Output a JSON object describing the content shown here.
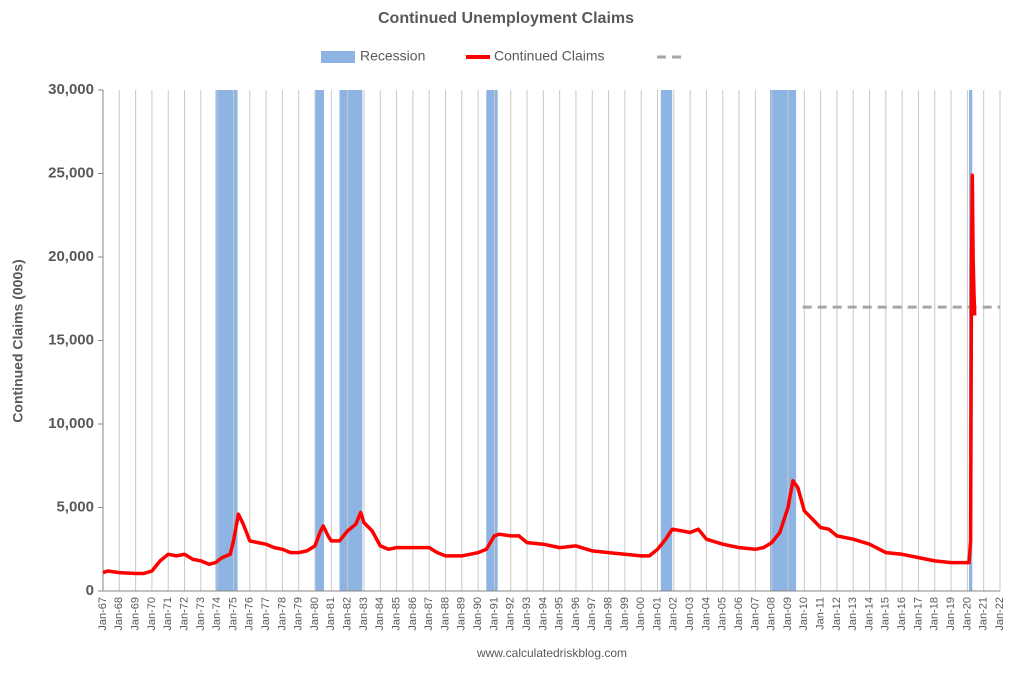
{
  "chart_data": {
    "type": "line",
    "title": "Continued Unemployment Claims",
    "y_label": "Continued Claims (000s)",
    "source": "www.calculatedriskblog.com",
    "xlim": [
      1967,
      2022
    ],
    "xticks": [
      {
        "value": 1967,
        "label": "Jan-67"
      },
      {
        "value": 1968,
        "label": "Jan-68"
      },
      {
        "value": 1969,
        "label": "Jan-69"
      },
      {
        "value": 1970,
        "label": "Jan-70"
      },
      {
        "value": 1971,
        "label": "Jan-71"
      },
      {
        "value": 1972,
        "label": "Jan-72"
      },
      {
        "value": 1973,
        "label": "Jan-73"
      },
      {
        "value": 1974,
        "label": "Jan-74"
      },
      {
        "value": 1975,
        "label": "Jan-75"
      },
      {
        "value": 1976,
        "label": "Jan-76"
      },
      {
        "value": 1977,
        "label": "Jan-77"
      },
      {
        "value": 1978,
        "label": "Jan-78"
      },
      {
        "value": 1979,
        "label": "Jan-79"
      },
      {
        "value": 1980,
        "label": "Jan-80"
      },
      {
        "value": 1981,
        "label": "Jan-81"
      },
      {
        "value": 1982,
        "label": "Jan-82"
      },
      {
        "value": 1983,
        "label": "Jan-83"
      },
      {
        "value": 1984,
        "label": "Jan-84"
      },
      {
        "value": 1985,
        "label": "Jan-85"
      },
      {
        "value": 1986,
        "label": "Jan-86"
      },
      {
        "value": 1987,
        "label": "Jan-87"
      },
      {
        "value": 1988,
        "label": "Jan-88"
      },
      {
        "value": 1989,
        "label": "Jan-89"
      },
      {
        "value": 1990,
        "label": "Jan-90"
      },
      {
        "value": 1991,
        "label": "Jan-91"
      },
      {
        "value": 1992,
        "label": "Jan-92"
      },
      {
        "value": 1993,
        "label": "Jan-93"
      },
      {
        "value": 1994,
        "label": "Jan-94"
      },
      {
        "value": 1995,
        "label": "Jan-95"
      },
      {
        "value": 1996,
        "label": "Jan-96"
      },
      {
        "value": 1997,
        "label": "Jan-97"
      },
      {
        "value": 1998,
        "label": "Jan-98"
      },
      {
        "value": 1999,
        "label": "Jan-99"
      },
      {
        "value": 2000,
        "label": "Jan-00"
      },
      {
        "value": 2001,
        "label": "Jan-01"
      },
      {
        "value": 2002,
        "label": "Jan-02"
      },
      {
        "value": 2003,
        "label": "Jan-03"
      },
      {
        "value": 2004,
        "label": "Jan-04"
      },
      {
        "value": 2005,
        "label": "Jan-05"
      },
      {
        "value": 2006,
        "label": "Jan-06"
      },
      {
        "value": 2007,
        "label": "Jan-07"
      },
      {
        "value": 2008,
        "label": "Jan-08"
      },
      {
        "value": 2009,
        "label": "Jan-09"
      },
      {
        "value": 2010,
        "label": "Jan-10"
      },
      {
        "value": 2011,
        "label": "Jan-11"
      },
      {
        "value": 2012,
        "label": "Jan-12"
      },
      {
        "value": 2013,
        "label": "Jan-13"
      },
      {
        "value": 2014,
        "label": "Jan-14"
      },
      {
        "value": 2015,
        "label": "Jan-15"
      },
      {
        "value": 2016,
        "label": "Jan-16"
      },
      {
        "value": 2017,
        "label": "Jan-17"
      },
      {
        "value": 2018,
        "label": "Jan-18"
      },
      {
        "value": 2019,
        "label": "Jan-19"
      },
      {
        "value": 2020,
        "label": "Jan-20"
      },
      {
        "value": 2021,
        "label": "Jan-21"
      },
      {
        "value": 2022,
        "label": "Jan-22"
      }
    ],
    "ylim": [
      0,
      30000
    ],
    "yticks": [
      0,
      {
        "value": 5000,
        "label": "5,000"
      },
      {
        "value": 10000,
        "label": "10,000"
      },
      {
        "value": 15000,
        "label": "15,000"
      },
      {
        "value": 20000,
        "label": "20,000"
      },
      {
        "value": 25000,
        "label": "25,000"
      },
      {
        "value": 30000,
        "label": "30,000"
      }
    ],
    "grid": true,
    "recession": {
      "name": "Recession",
      "color": "#8eb4e3",
      "periods": [
        [
          1973.9,
          1975.25
        ],
        [
          1980.0,
          1980.55
        ],
        [
          1981.5,
          1982.9
        ],
        [
          1990.5,
          1991.2
        ],
        [
          2001.2,
          2001.9
        ],
        [
          2007.9,
          2009.5
        ],
        [
          2020.1,
          2020.3
        ]
      ]
    },
    "series": [
      {
        "name": "Continued Claims",
        "color": "#ff0000",
        "x": [
          1967.0,
          1967.3,
          1968.0,
          1969.0,
          1969.5,
          1970.0,
          1970.5,
          1971.0,
          1971.5,
          1972.0,
          1972.5,
          1973.0,
          1973.5,
          1973.9,
          1974.3,
          1974.8,
          1975.0,
          1975.3,
          1975.6,
          1976.0,
          1976.5,
          1977.0,
          1977.5,
          1978.0,
          1978.5,
          1979.0,
          1979.5,
          1980.0,
          1980.3,
          1980.5,
          1980.8,
          1981.0,
          1981.5,
          1982.0,
          1982.5,
          1982.8,
          1983.0,
          1983.5,
          1984.0,
          1984.5,
          1985.0,
          1986.0,
          1987.0,
          1987.5,
          1988.0,
          1989.0,
          1989.5,
          1990.0,
          1990.5,
          1991.0,
          1991.3,
          1992.0,
          1992.5,
          1993.0,
          1994.0,
          1995.0,
          1996.0,
          1997.0,
          1998.0,
          1999.0,
          2000.0,
          2000.5,
          2001.0,
          2001.5,
          2001.9,
          2002.5,
          2003.0,
          2003.5,
          2004.0,
          2005.0,
          2006.0,
          2007.0,
          2007.5,
          2008.0,
          2008.5,
          2009.0,
          2009.3,
          2009.6,
          2010.0,
          2011.0,
          2011.5,
          2012.0,
          2013.0,
          2014.0,
          2015.0,
          2016.0,
          2017.0,
          2018.0,
          2019.0,
          2020.1,
          2020.2,
          2020.25,
          2020.3,
          2020.35,
          2020.4,
          2020.45
        ],
        "values": [
          1100,
          1200,
          1100,
          1050,
          1050,
          1200,
          1800,
          2200,
          2100,
          2200,
          1900,
          1800,
          1600,
          1700,
          2000,
          2200,
          3000,
          4600,
          4000,
          3000,
          2900,
          2800,
          2600,
          2500,
          2300,
          2300,
          2400,
          2700,
          3500,
          3900,
          3300,
          3000,
          3000,
          3600,
          4000,
          4700,
          4100,
          3600,
          2700,
          2500,
          2600,
          2600,
          2600,
          2300,
          2100,
          2100,
          2200,
          2300,
          2500,
          3300,
          3400,
          3300,
          3300,
          2900,
          2800,
          2600,
          2700,
          2400,
          2300,
          2200,
          2100,
          2100,
          2500,
          3100,
          3700,
          3600,
          3500,
          3700,
          3100,
          2800,
          2600,
          2500,
          2600,
          2900,
          3500,
          5000,
          6600,
          6200,
          4800,
          3800,
          3700,
          3300,
          3100,
          2800,
          2300,
          2200,
          2000,
          1800,
          1700,
          1700,
          3000,
          19000,
          24900,
          20000,
          18000,
          16500
        ]
      }
    ],
    "reference_line": {
      "value": 17000,
      "x": [
        2009.9,
        2022
      ],
      "color": "#a6a6a6"
    }
  }
}
